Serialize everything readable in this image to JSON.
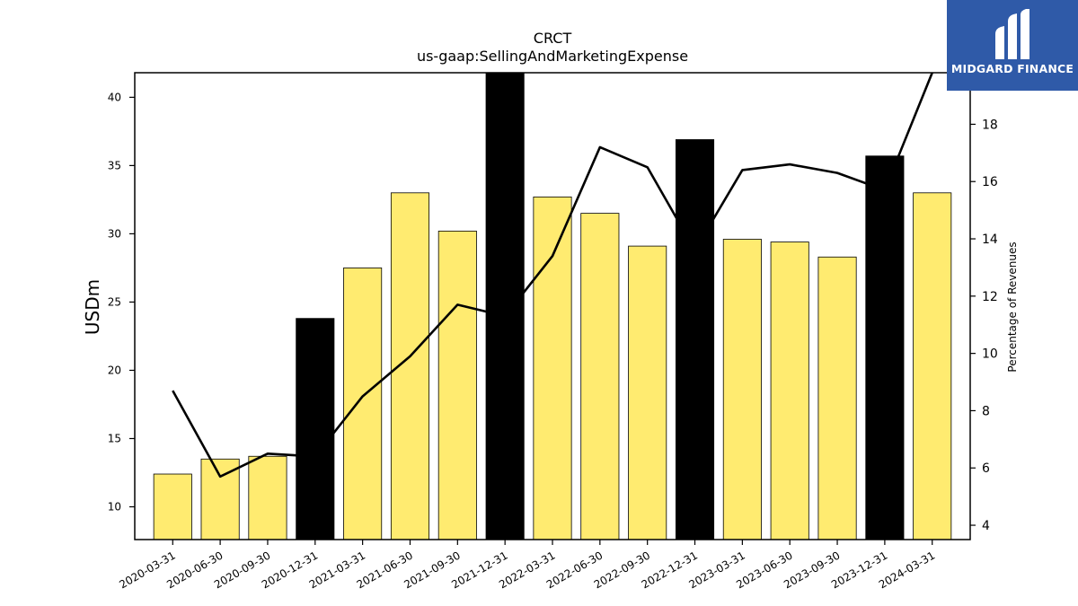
{
  "chart_data": {
    "type": "bar+line",
    "title": "CRCT",
    "subtitle": "us-gaap:SellingAndMarketingExpense",
    "ylabel": "USDm",
    "y2label": "Percentage of Revenues",
    "ylim": [
      7.6,
      41.8
    ],
    "y2lim": [
      3.5,
      19.8
    ],
    "yticks": [
      10,
      15,
      20,
      25,
      30,
      35,
      40
    ],
    "y2ticks": [
      4,
      6,
      8,
      10,
      12,
      14,
      16,
      18
    ],
    "categories": [
      "2020-03-31",
      "2020-06-30",
      "2020-09-30",
      "2020-12-31",
      "2021-03-31",
      "2021-06-30",
      "2021-09-30",
      "2021-12-31",
      "2022-03-31",
      "2022-06-30",
      "2022-09-30",
      "2022-12-31",
      "2023-03-31",
      "2023-06-30",
      "2023-09-30",
      "2023-12-31",
      "2024-03-31"
    ],
    "bars": {
      "values": [
        12.4,
        13.5,
        13.7,
        23.8,
        27.5,
        33.0,
        30.2,
        41.8,
        32.7,
        31.5,
        29.1,
        36.9,
        29.6,
        29.4,
        28.3,
        35.7,
        33.0
      ],
      "highlight": [
        false,
        false,
        false,
        true,
        false,
        false,
        false,
        true,
        false,
        false,
        false,
        true,
        false,
        false,
        false,
        true,
        false
      ]
    },
    "line": {
      "values": [
        8.7,
        5.7,
        6.5,
        6.4,
        8.5,
        9.9,
        11.7,
        11.3,
        13.4,
        17.2,
        16.5,
        13.6,
        16.4,
        16.6,
        16.3,
        15.7,
        19.8
      ]
    },
    "colors": {
      "bar": "#ffeb70",
      "bar_highlight": "#000000",
      "line": "#000000"
    },
    "grid": false,
    "legend": "none"
  },
  "logo": {
    "text": "MIDGARD FINANCE"
  }
}
